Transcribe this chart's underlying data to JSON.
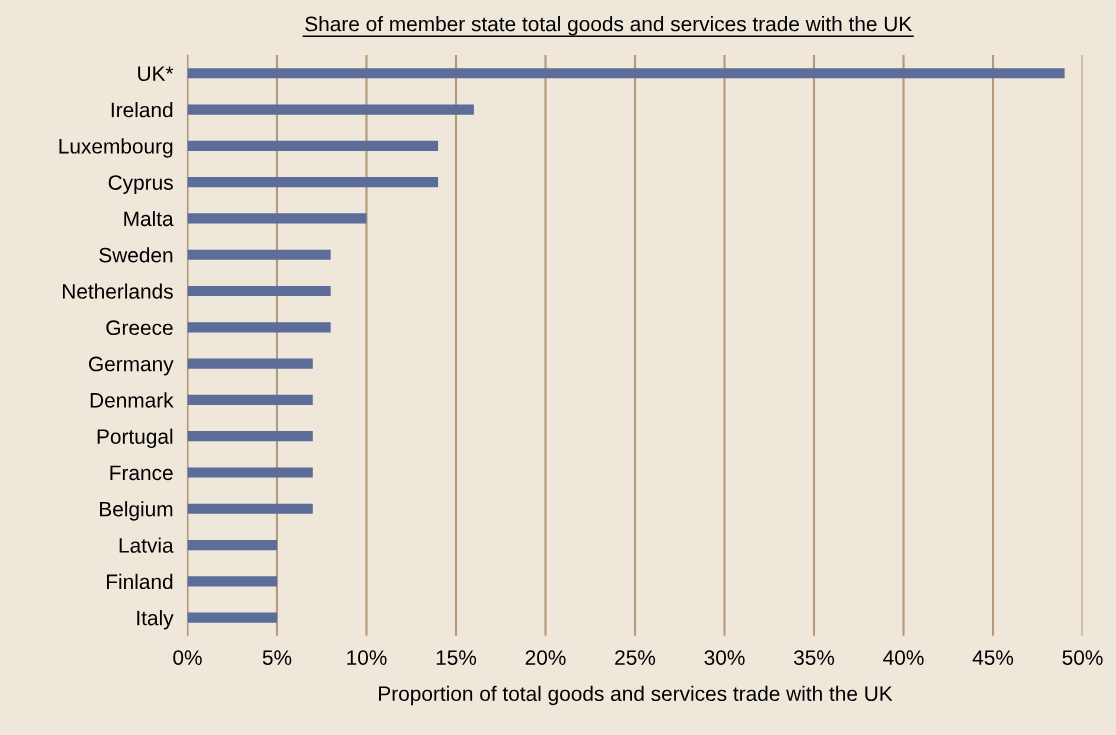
{
  "chart_data": {
    "type": "bar",
    "orientation": "horizontal",
    "title": "Share of member state total goods and services trade with the UK",
    "xlabel": "Proportion of total goods and services trade with the UK",
    "categories": [
      "UK*",
      "Ireland",
      "Luxembourg",
      "Cyprus",
      "Malta",
      "Sweden",
      "Netherlands",
      "Greece",
      "Germany",
      "Denmark",
      "Portugal",
      "France",
      "Belgium",
      "Latvia",
      "Finland",
      "Italy"
    ],
    "values": [
      49,
      16,
      14,
      14,
      10,
      8,
      8,
      8,
      7,
      7,
      7,
      7,
      7,
      5,
      5,
      5
    ],
    "color": "#5b6d98",
    "xlim": [
      0,
      50
    ],
    "xticks": [
      {
        "value": 0,
        "label": "0%"
      },
      {
        "value": 5,
        "label": "5%"
      },
      {
        "value": 10,
        "label": "10%"
      },
      {
        "value": 15,
        "label": "15%"
      },
      {
        "value": 20,
        "label": "20%"
      },
      {
        "value": 25,
        "label": "25%"
      },
      {
        "value": 30,
        "label": "30%"
      },
      {
        "value": 35,
        "label": "35%"
      },
      {
        "value": 40,
        "label": "40%"
      },
      {
        "value": 45,
        "label": "45%"
      },
      {
        "value": 50,
        "label": "50%"
      }
    ],
    "grid": "x",
    "legend": false
  }
}
